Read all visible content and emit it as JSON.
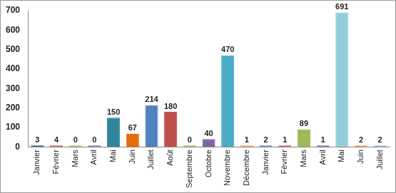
{
  "chart_data": {
    "type": "bar",
    "categories": [
      "Janvier",
      "Février",
      "Mars",
      "Avril",
      "Mai",
      "Juin",
      "Juillet",
      "Août",
      "Septembre",
      "Octobre",
      "Novembre",
      "Décembre",
      "Janvier",
      "Février",
      "Mars",
      "Avril",
      "Mai",
      "Juin",
      "Juillet"
    ],
    "values": [
      3,
      4,
      0,
      0,
      150,
      67,
      214,
      180,
      0,
      40,
      470,
      1,
      2,
      1,
      89,
      1,
      691,
      2,
      2
    ],
    "colors": [
      "#1f4e79",
      "#c0504d",
      "#9bbb59",
      "#8064a2",
      "#31859c",
      "#e46c0a",
      "#4f81bd",
      "#c0504d",
      "#9bbb59",
      "#8064a2",
      "#4bacc6",
      "#f79646",
      "#4f81bd",
      "#c0504d",
      "#9bbb59",
      "#8064a2",
      "#93cddd",
      "#f79646",
      "#8eb4e3"
    ],
    "ylim": [
      0,
      700
    ],
    "yticks": [
      0,
      100,
      200,
      300,
      400,
      500,
      600,
      700
    ],
    "grid": false,
    "data_labels": true
  }
}
